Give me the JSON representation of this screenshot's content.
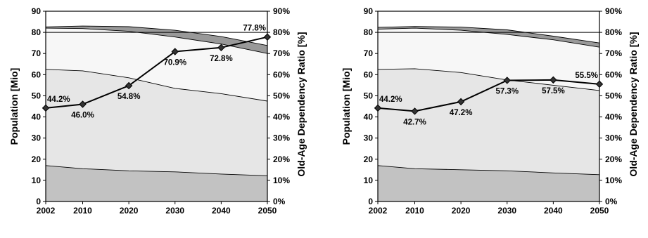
{
  "chart_data": [
    {
      "type": "area",
      "title": "",
      "xlabel": "",
      "ylabel": "Population [Mio]",
      "y2label": "Old-Age Dependency Ratio [%]",
      "x": [
        2002,
        2010,
        2020,
        2030,
        2040,
        2050
      ],
      "ylim": [
        0,
        90
      ],
      "y2lim": [
        0,
        90
      ],
      "y_ticks": [
        "0",
        "10",
        "20",
        "30",
        "40",
        "50",
        "60",
        "70",
        "80",
        "90"
      ],
      "y2_ticks": [
        "0%",
        "10%",
        "20%",
        "30%",
        "40%",
        "50%",
        "60%",
        "70%",
        "80%",
        "90%"
      ],
      "x_ticks": [
        "2002",
        "2010",
        "2020",
        "2030",
        "2040",
        "2050"
      ],
      "reference_line": 80,
      "colors": {
        "band1": "#c2c2c2",
        "band2": "#e6e6e6",
        "band3": "#f7f7f7",
        "band4": "#999999",
        "line": "#000000"
      },
      "stack_boundaries": [
        [
          17.0,
          15.5,
          14.5,
          14.0,
          13.0,
          12.2
        ],
        [
          62.5,
          61.8,
          58.5,
          53.5,
          51.0,
          47.5
        ],
        [
          82.0,
          81.8,
          80.5,
          77.8,
          74.5,
          70.0
        ],
        [
          82.6,
          83.0,
          82.7,
          81.0,
          78.0,
          73.8
        ]
      ],
      "series": [
        {
          "values": [
            44.2,
            46.0,
            54.8,
            70.9,
            72.8,
            77.8
          ],
          "labels": [
            "44.2%",
            "46.0%",
            "54.8%",
            "70.9%",
            "72.8%",
            "77.8%"
          ]
        }
      ]
    },
    {
      "type": "area",
      "title": "",
      "xlabel": "",
      "ylabel": "Population [Mio]",
      "y2label": "Old-Age Dependency Ratio [%]",
      "x": [
        2002,
        2010,
        2020,
        2030,
        2040,
        2050
      ],
      "ylim": [
        0,
        90
      ],
      "y2lim": [
        0,
        90
      ],
      "y_ticks": [
        "0",
        "10",
        "20",
        "30",
        "40",
        "50",
        "60",
        "70",
        "80",
        "90"
      ],
      "y2_ticks": [
        "0%",
        "10%",
        "20%",
        "30%",
        "40%",
        "50%",
        "60%",
        "70%",
        "80%",
        "90%"
      ],
      "x_ticks": [
        "2002",
        "2010",
        "2020",
        "2030",
        "2040",
        "2050"
      ],
      "reference_line": 80,
      "colors": {
        "band1": "#c2c2c2",
        "band2": "#e6e6e6",
        "band3": "#f7f7f7",
        "band4": "#999999",
        "line": "#000000"
      },
      "stack_boundaries": [
        [
          17.0,
          15.5,
          15.0,
          14.5,
          13.5,
          12.7
        ],
        [
          62.5,
          62.8,
          61.0,
          57.5,
          55.0,
          52.5
        ],
        [
          81.5,
          82.0,
          81.0,
          79.0,
          76.5,
          73.0
        ],
        [
          82.4,
          82.8,
          82.5,
          81.2,
          78.2,
          75.0
        ]
      ],
      "series": [
        {
          "values": [
            44.2,
            42.7,
            47.2,
            57.3,
            57.5,
            55.5
          ],
          "labels": [
            "44.2%",
            "42.7%",
            "47.2%",
            "57.3%",
            "57.5%",
            "55.5%"
          ]
        }
      ]
    }
  ]
}
